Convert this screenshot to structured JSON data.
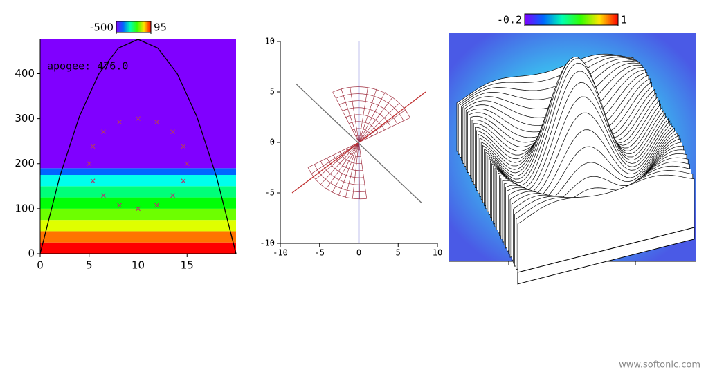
{
  "chart_data": [
    {
      "type": "heatmap",
      "xlim": [
        0,
        20
      ],
      "ylim": [
        0,
        476
      ],
      "xticks": [
        0,
        5,
        10,
        15
      ],
      "yticks": [
        0,
        100,
        200,
        300,
        400
      ],
      "colorbar_lim": [
        -500,
        95
      ],
      "colorbar_ticks": [
        -500,
        95
      ],
      "annotation": "apogee: 476.0",
      "heat_y_edges": [
        0,
        25,
        50,
        75,
        100,
        125,
        150,
        175,
        190,
        476
      ],
      "heat_values": [
        95,
        35,
        -54,
        -113,
        -173,
        -232,
        -292,
        -381,
        -500
      ],
      "series": [
        {
          "type": "line",
          "color": "#000000",
          "x": [
            0,
            2,
            4,
            6,
            8,
            10,
            12,
            14,
            16,
            18,
            20
          ],
          "values": [
            0,
            171.36,
            304.64,
            399.84,
            456.96,
            476,
            456.96,
            399.84,
            304.64,
            171.36,
            0
          ]
        },
        {
          "type": "scatter",
          "color": "#b03a6a",
          "x": [
            15,
            14.62,
            13.54,
            11.91,
            10,
            8.09,
            6.46,
            5.38,
            5,
            5.38,
            6.46,
            8.09,
            10,
            11.91,
            13.54,
            14.62
          ],
          "values": [
            200,
            238.3,
            270.7,
            292.4,
            300,
            292.4,
            270.7,
            238.3,
            200,
            161.7,
            129.3,
            107.6,
            100,
            107.6,
            129.3,
            161.7
          ]
        }
      ]
    },
    {
      "type": "line",
      "xlim": [
        -10,
        10
      ],
      "ylim": [
        -10,
        10
      ],
      "xticks": [
        -10,
        -5,
        0,
        5,
        10
      ],
      "yticks": [
        -10,
        -5,
        0,
        5,
        10
      ],
      "series": [
        {
          "color": "#3030c0",
          "x": [
            0,
            0
          ],
          "values": [
            -10,
            10
          ]
        },
        {
          "color": "#c03030",
          "x": [
            -8.5,
            8.5
          ],
          "values": [
            -5,
            5
          ]
        },
        {
          "color": "#707070",
          "x": [
            -8,
            8
          ],
          "values": [
            5.8,
            -6
          ]
        }
      ]
    },
    {
      "type": "surface",
      "colorbar_lim": [
        -0.2,
        1
      ],
      "colorbar_ticks": [
        -0.2,
        1
      ]
    }
  ],
  "watermark": "www.softonic.com"
}
